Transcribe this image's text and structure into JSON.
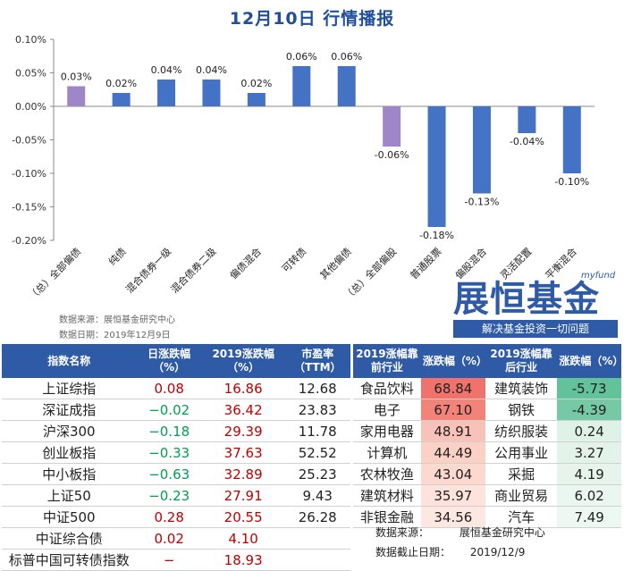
{
  "title": "12月10日  行情播报",
  "source_line": "数据来源：展恒基金研究中心",
  "date_line": "数据日期：2019年12月9日",
  "logo": {
    "tag": "myfund",
    "main": "展恒基金",
    "slogan": "解决基金投资一切问题"
  },
  "chart_data": {
    "type": "bar",
    "categories": [
      "（总）全部偏债",
      "纯债",
      "混合债券一级",
      "混合债券二级",
      "偏债混合",
      "可转债",
      "其他偏债",
      "（总）全部偏股",
      "普通股票",
      "偏股混合",
      "灵活配置",
      "平衡混合"
    ],
    "values": [
      0.03,
      0.02,
      0.04,
      0.04,
      0.02,
      0.06,
      0.06,
      -0.06,
      -0.18,
      -0.13,
      -0.04,
      -0.1
    ],
    "labels": [
      "0.03%",
      "0.02%",
      "0.04%",
      "0.04%",
      "0.02%",
      "0.06%",
      "0.06%",
      "-0.06%",
      "-0.18%",
      "-0.13%",
      "-0.04%",
      "-0.10%"
    ],
    "highlight": [
      0,
      7
    ],
    "colors": {
      "normal": "#4472c4",
      "highlight": "#9e86c8"
    },
    "yticks": [
      "0.10%",
      "0.05%",
      "0.00%",
      "-0.05%",
      "-0.10%",
      "-0.15%",
      "-0.20%"
    ],
    "ylim": [
      -0.2,
      0.1
    ]
  },
  "table1": {
    "headers": [
      "指数名称",
      "日涨跌幅（%）",
      "2019涨跌幅（%）",
      "市盈率（TTM）"
    ],
    "rows": [
      {
        "name": "上证综指",
        "daily": "0.08",
        "year": "16.86",
        "pe": "12.68",
        "sign": "pos"
      },
      {
        "name": "深证成指",
        "daily": "−0.02",
        "year": "36.42",
        "pe": "23.83",
        "sign": "neg"
      },
      {
        "name": "沪深300",
        "daily": "−0.18",
        "year": "29.39",
        "pe": "11.78",
        "sign": "neg"
      },
      {
        "name": "创业板指",
        "daily": "−0.33",
        "year": "37.63",
        "pe": "52.52",
        "sign": "neg"
      },
      {
        "name": "中小板指",
        "daily": "−0.63",
        "year": "32.89",
        "pe": "25.23",
        "sign": "neg"
      },
      {
        "name": "上证50",
        "daily": "−0.23",
        "year": "27.91",
        "pe": "9.43",
        "sign": "neg"
      },
      {
        "name": "中证500",
        "daily": "0.28",
        "year": "20.55",
        "pe": "26.28",
        "sign": "pos"
      },
      {
        "name": "中证综合债",
        "daily": "0.02",
        "year": "4.10",
        "pe": "",
        "sign": "pos"
      },
      {
        "name": "标普中国可转债指数",
        "daily": "−",
        "year": "18.93",
        "pe": "",
        "sign": "pos"
      }
    ]
  },
  "table2": {
    "headers": [
      "2019涨幅靠前行业",
      "涨跌幅（%）",
      "2019涨幅靠后行业",
      "涨跌幅（%）"
    ],
    "rows": [
      {
        "top": "食品饮料",
        "top_val": "68.84",
        "bottom": "建筑装饰",
        "bottom_val": "-5.73"
      },
      {
        "top": "电子",
        "top_val": "67.10",
        "bottom": "钢铁",
        "bottom_val": "-4.39"
      },
      {
        "top": "家用电器",
        "top_val": "48.91",
        "bottom": "纺织服装",
        "bottom_val": "0.24"
      },
      {
        "top": "计算机",
        "top_val": "44.49",
        "bottom": "公用事业",
        "bottom_val": "3.27"
      },
      {
        "top": "农林牧渔",
        "top_val": "43.04",
        "bottom": "采掘",
        "bottom_val": "4.19"
      },
      {
        "top": "建筑材料",
        "top_val": "35.97",
        "bottom": "商业贸易",
        "bottom_val": "6.02"
      },
      {
        "top": "非银金融",
        "top_val": "34.56",
        "bottom": "汽车",
        "bottom_val": "7.49"
      }
    ],
    "top_colors": [
      "#f0736b",
      "#f38279",
      "#f9c2b8",
      "#fbd0c5",
      "#fcd8cf",
      "#fde3dc",
      "#fde7e1"
    ],
    "bottom_colors": [
      "#62c29a",
      "#76c9a5",
      "#dff2e8",
      "#e3f3ea",
      "#e6f4ec",
      "#eaf6f0",
      "#eef8f2"
    ],
    "footer_source_label": "数据来源：",
    "footer_source_value": "展恒基金研究中心",
    "footer_date_label": "数据截止日期：",
    "footer_date_value": "2019/12/9"
  }
}
